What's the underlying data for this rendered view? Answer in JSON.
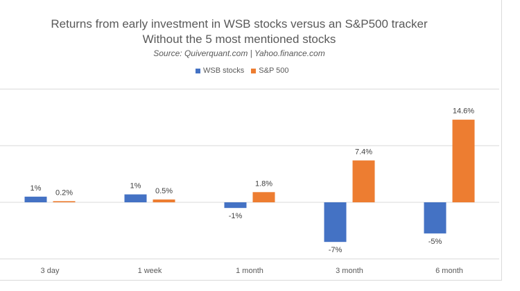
{
  "chart_data": {
    "type": "bar",
    "title": "Returns from early investment in  WSB stocks versus an S&P500 tracker",
    "subtitle": "Without the 5 most mentioned stocks",
    "source": "Source: Quiverquant.com | Yahoo.finance.com",
    "categories": [
      "3 day",
      "1 week",
      "1 month",
      "3 month",
      "6 month"
    ],
    "series": [
      {
        "name": "WSB stocks",
        "color": "#4472C4",
        "values": [
          1,
          1.4,
          -1,
          -7,
          -5.5
        ],
        "labels": [
          "1%",
          "1%",
          "-1%",
          "-7%",
          "-5%"
        ]
      },
      {
        "name": "S&P 500",
        "color": "#ED7D31",
        "values": [
          0.2,
          0.5,
          1.8,
          7.4,
          14.6
        ],
        "labels": [
          "0.2%",
          "0.5%",
          "1.8%",
          "7.4%",
          "14.6%"
        ]
      }
    ],
    "ylim": [
      -10,
      20
    ],
    "gridlines": [
      -10,
      0,
      10,
      20
    ],
    "grid": true,
    "legend_position": "top-center",
    "xlabel": "",
    "ylabel": ""
  }
}
